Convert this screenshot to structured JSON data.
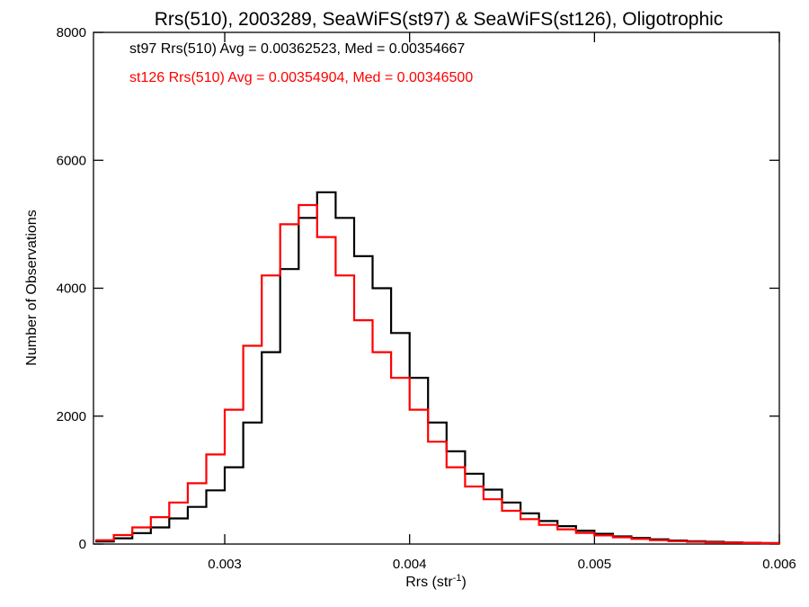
{
  "chart_data": {
    "type": "line",
    "step": true,
    "title": "Rrs(510), 2003289, SeaWiFS(st97) & SeaWiFS(st126), Oligotrophic",
    "xlabel": "Rrs (str",
    "xlabel_sup": "-1",
    "xlabel_end": ")",
    "ylabel": "Number of Observations",
    "xlim": [
      0.00229,
      0.006
    ],
    "ylim": [
      0,
      8000
    ],
    "xticks": [
      0.003,
      0.004,
      0.005,
      0.006
    ],
    "xtick_labels": [
      "0.003",
      "0.004",
      "0.005",
      "0.006"
    ],
    "yticks": [
      0,
      2000,
      4000,
      6000,
      8000
    ],
    "ytick_labels": [
      "0",
      "2000",
      "4000",
      "6000",
      "8000"
    ],
    "grid": false,
    "legend_position": "top-left",
    "series": [
      {
        "name": "st97",
        "color": "#000000",
        "annotation": "st97 Rrs(510) Avg = 0.00362523, Med = 0.00354667",
        "x": [
          0.0023,
          0.0024,
          0.0025,
          0.0026,
          0.0027,
          0.0028,
          0.0029,
          0.003,
          0.0031,
          0.0032,
          0.0033,
          0.0034,
          0.0035,
          0.0036,
          0.0037,
          0.0038,
          0.0039,
          0.004,
          0.0041,
          0.0042,
          0.0043,
          0.0044,
          0.0045,
          0.0046,
          0.0047,
          0.0048,
          0.0049,
          0.005,
          0.0051,
          0.0052,
          0.0053,
          0.0054,
          0.0055,
          0.0056,
          0.0057,
          0.0058,
          0.0059,
          0.006
        ],
        "y": [
          40,
          90,
          170,
          260,
          400,
          580,
          840,
          1200,
          1900,
          3000,
          4300,
          5100,
          5500,
          5100,
          4500,
          4000,
          3300,
          2600,
          1900,
          1450,
          1100,
          850,
          650,
          480,
          360,
          280,
          210,
          160,
          120,
          95,
          75,
          55,
          45,
          35,
          25,
          20,
          15,
          10
        ]
      },
      {
        "name": "st126",
        "color": "#ff0000",
        "annotation": "st126 Rrs(510) Avg = 0.00354904, Med = 0.00346500",
        "x": [
          0.0023,
          0.0024,
          0.0025,
          0.0026,
          0.0027,
          0.0028,
          0.0029,
          0.003,
          0.0031,
          0.0032,
          0.0033,
          0.0034,
          0.0035,
          0.0036,
          0.0037,
          0.0038,
          0.0039,
          0.004,
          0.0041,
          0.0042,
          0.0043,
          0.0044,
          0.0045,
          0.0046,
          0.0047,
          0.0048,
          0.0049,
          0.005,
          0.0051,
          0.0052,
          0.0053,
          0.0054,
          0.0055,
          0.0056,
          0.0057,
          0.0058,
          0.0059,
          0.006
        ],
        "y": [
          60,
          140,
          260,
          420,
          650,
          950,
          1400,
          2100,
          3100,
          4200,
          5000,
          5300,
          4800,
          4200,
          3500,
          3000,
          2600,
          2100,
          1600,
          1200,
          900,
          700,
          520,
          390,
          300,
          230,
          175,
          135,
          105,
          80,
          60,
          45,
          35,
          27,
          20,
          15,
          12,
          8
        ]
      }
    ]
  }
}
